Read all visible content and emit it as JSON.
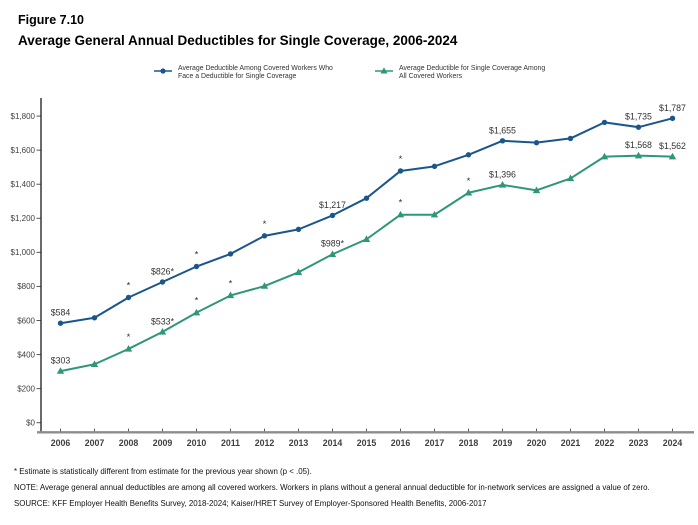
{
  "figure_label": "Figure 7.10",
  "title": "Average General Annual Deductibles for Single Coverage, 2006-2024",
  "colors": {
    "series_blue": "#1a568c",
    "series_green": "#2e9778",
    "axis_x_line": "#8c8c8c",
    "axis_y_line": "#2b2b2b",
    "tick_label": "#404040",
    "data_label": "#333333"
  },
  "legend": {
    "entries": [
      {
        "line1": "Average Deductible Among Covered Workers Who",
        "line2": "Face a Deductible for Single Coverage",
        "color": "#1a568c",
        "marker": "circle"
      },
      {
        "line1": "Average Deductible for Single Coverage Among",
        "line2": "All Covered Workers",
        "color": "#2e9778",
        "marker": "triangle"
      }
    ]
  },
  "chart_data": {
    "type": "line",
    "x": [
      2006,
      2007,
      2008,
      2009,
      2010,
      2011,
      2012,
      2013,
      2014,
      2015,
      2016,
      2017,
      2018,
      2019,
      2020,
      2021,
      2022,
      2023,
      2024
    ],
    "series": [
      {
        "name": "Average Deductible Among Covered Workers Who Face a Deductible for Single Coverage",
        "color": "#1a568c",
        "marker": "circle",
        "values": [
          584,
          616,
          735,
          826,
          917,
          991,
          1097,
          1135,
          1217,
          1318,
          1478,
          1505,
          1573,
          1655,
          1644,
          1669,
          1763,
          1735,
          1787
        ],
        "point_labels": [
          {
            "year": 2006,
            "text": "$584"
          },
          {
            "year": 2009,
            "text": "$826*"
          },
          {
            "year": 2014,
            "text": "$1,217"
          },
          {
            "year": 2019,
            "text": "$1,655"
          },
          {
            "year": 2023,
            "text": "$1,735"
          },
          {
            "year": 2024,
            "text": "$1,787"
          }
        ],
        "asterisk_years": [
          2008,
          2010,
          2012,
          2016
        ]
      },
      {
        "name": "Average Deductible for Single Coverage Among All Covered Workers",
        "color": "#2e9778",
        "marker": "triangle",
        "values": [
          303,
          343,
          433,
          533,
          646,
          747,
          802,
          883,
          989,
          1077,
          1221,
          1221,
          1350,
          1396,
          1364,
          1434,
          1562,
          1568,
          1562
        ],
        "point_labels": [
          {
            "year": 2006,
            "text": "$303"
          },
          {
            "year": 2009,
            "text": "$533*"
          },
          {
            "year": 2014,
            "text": "$989*"
          },
          {
            "year": 2019,
            "text": "$1,396"
          },
          {
            "year": 2023,
            "text": "$1,568"
          },
          {
            "year": 2024,
            "text": "$1,562"
          }
        ],
        "asterisk_years": [
          2008,
          2010,
          2011,
          2016,
          2018
        ]
      }
    ],
    "ylim": [
      0,
      1800
    ],
    "ytick_step": 200,
    "ytick_labels": [
      "$0",
      "$200",
      "$400",
      "$600",
      "$800",
      "$1,000",
      "$1,200",
      "$1,400",
      "$1,600",
      "$1,800"
    ],
    "grid": false,
    "legend_position": "top",
    "xlabel": "",
    "ylabel": ""
  },
  "footnotes": {
    "asterisk_note": "* Estimate is statistically different from estimate for the previous year shown (p < .05).",
    "note": "NOTE: Average general annual deductibles are among all covered workers. Workers in plans without a general annual deductible for in-network services are assigned a value of zero.",
    "source": "SOURCE: KFF Employer Health Benefits Survey, 2018-2024; Kaiser/HRET Survey of Employer-Sponsored Health Benefits, 2006-2017"
  }
}
